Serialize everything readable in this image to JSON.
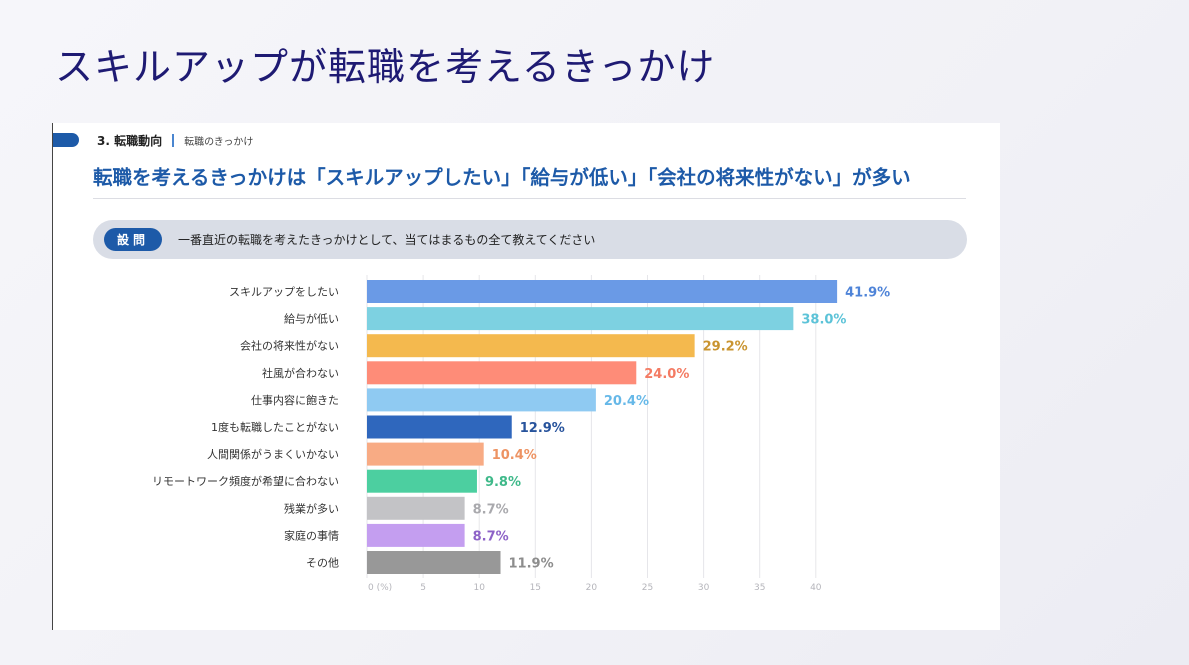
{
  "slide": {
    "title": "スキルアップが転職を考えるきっかけ"
  },
  "card": {
    "section": "3. 転職動向",
    "subsection": "転職のきっかけ",
    "headline": "転職を考えるきっかけは「スキルアップしたい」「給与が低い」「会社の将来性がない」が多い",
    "question_badge": "設問",
    "question_text": "一番直近の転職を考えたきっかけとして、当てはまるもの全て教えてください"
  },
  "chart_data": {
    "type": "bar",
    "orientation": "horizontal",
    "categories": [
      "スキルアップをしたい",
      "給与が低い",
      "会社の将来性がない",
      "社風が合わない",
      "仕事内容に飽きた",
      "1度も転職したことがない",
      "人間関係がうまくいかない",
      "リモートワーク頻度が希望に合わない",
      "残業が多い",
      "家庭の事情",
      "その他"
    ],
    "values": [
      41.9,
      38.0,
      29.2,
      24.0,
      20.4,
      12.9,
      10.4,
      9.8,
      8.7,
      8.7,
      11.9
    ],
    "value_labels": [
      "41.9%",
      "38.0%",
      "29.2%",
      "24.0%",
      "20.4%",
      "12.9%",
      "10.4%",
      "9.8%",
      "8.7%",
      "8.7%",
      "11.9%"
    ],
    "bar_colors": [
      "#6a9ae6",
      "#7dd1e1",
      "#f4b94e",
      "#fe8c78",
      "#8fcaf2",
      "#2f67bd",
      "#f8ab84",
      "#4ccfa0",
      "#c3c3c6",
      "#c49ef0",
      "#989898"
    ],
    "label_colors": [
      "#4f84d8",
      "#5cc3d8",
      "#c99430",
      "#f47b63",
      "#66b8e8",
      "#27539c",
      "#ed9363",
      "#3fb98a",
      "#a9a9ad",
      "#8d62c7",
      "#8d8d8d"
    ],
    "xticks": [
      "0 (%)",
      "5",
      "10",
      "15",
      "20",
      "25",
      "30",
      "35",
      "40"
    ],
    "xlim": [
      0,
      45
    ],
    "grid": true,
    "title": "",
    "xlabel": "",
    "ylabel": ""
  }
}
